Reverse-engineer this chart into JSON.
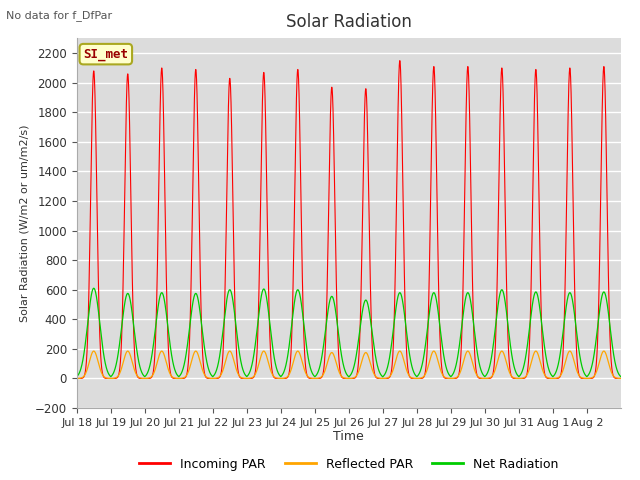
{
  "title": "Solar Radiation",
  "ylabel": "Solar Radiation (W/m2 or um/m2/s)",
  "xlabel": "Time",
  "note": "No data for f_DfPar",
  "legend_label": "SI_met",
  "ylim": [
    -200,
    2300
  ],
  "yticks": [
    -200,
    0,
    200,
    400,
    600,
    800,
    1000,
    1200,
    1400,
    1600,
    1800,
    2000,
    2200
  ],
  "x_tick_labels": [
    "Jul 18",
    "Jul 19",
    "Jul 20",
    "Jul 21",
    "Jul 22",
    "Jul 23",
    "Jul 24",
    "Jul 25",
    "Jul 26",
    "Jul 27",
    "Jul 28",
    "Jul 29",
    "Jul 30",
    "Jul 31",
    "Aug 1",
    "Aug 2"
  ],
  "n_days": 16,
  "background_color": "#dcdcdc",
  "line_colors": {
    "incoming": "#ff0000",
    "reflected": "#ffa500",
    "net": "#00cc00"
  },
  "incoming_peak": [
    2080,
    2060,
    2100,
    2090,
    2030,
    2070,
    2090,
    1970,
    1960,
    2150,
    2110,
    2110,
    2100,
    2090,
    2100,
    2110
  ],
  "reflected_peak": [
    185,
    185,
    185,
    185,
    185,
    185,
    185,
    175,
    175,
    185,
    185,
    185,
    185,
    185,
    185,
    185
  ],
  "net_peak": [
    610,
    575,
    580,
    575,
    600,
    605,
    600,
    555,
    530,
    580,
    580,
    580,
    600,
    585,
    580,
    585
  ],
  "net_night": -75
}
